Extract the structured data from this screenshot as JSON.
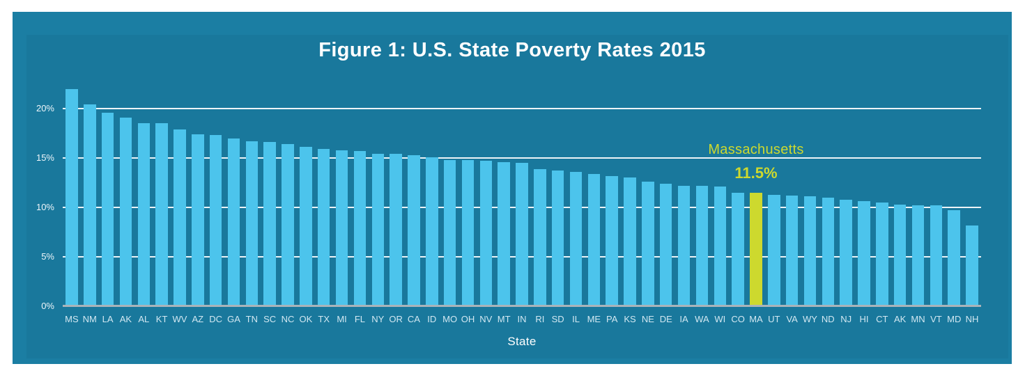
{
  "page": {
    "background": "#ffffff"
  },
  "card": {
    "background": "#1b7ea3"
  },
  "chart": {
    "title": "Figure 1: U.S. State Poverty Rates 2015",
    "xlabel": "State",
    "annotation": {
      "line1": "Massachusetts",
      "line2": "11.5%"
    }
  },
  "y_axis": {
    "tick_labels": [
      "20%",
      "15%",
      "10%",
      "5%",
      "0%"
    ],
    "tick_values": [
      20,
      15,
      10,
      5,
      0
    ]
  },
  "colors": {
    "bar": "#4cc4ec",
    "highlight": "#cdd92e",
    "gridline": "rgba(255,255,255,0.92)",
    "axis_line": "#a9b4ba",
    "text": "#ffffff"
  },
  "chart_data": {
    "type": "bar",
    "title": "Figure 1: U.S. State Poverty Rates 2015",
    "xlabel": "State",
    "ylabel": "",
    "ylim": [
      0,
      23
    ],
    "yticks": [
      0,
      5,
      10,
      15,
      20
    ],
    "ytick_format": "percent",
    "grid": "horizontal",
    "legend": "none",
    "categories": [
      "MS",
      "NM",
      "LA",
      "AK",
      "AL",
      "KT",
      "WV",
      "AZ",
      "DC",
      "GA",
      "TN",
      "SC",
      "NC",
      "OK",
      "TX",
      "MI",
      "FL",
      "NY",
      "OR",
      "CA",
      "ID",
      "MO",
      "OH",
      "NV",
      "MT",
      "IN",
      "RI",
      "SD",
      "IL",
      "ME",
      "PA",
      "KS",
      "NE",
      "DE",
      "IA",
      "WA",
      "WI",
      "CO",
      "MA",
      "UT",
      "VA",
      "WY",
      "ND",
      "NJ",
      "HI",
      "CT",
      "AK",
      "MN",
      "VT",
      "MD",
      "NH"
    ],
    "values": [
      22.0,
      20.4,
      19.6,
      19.1,
      18.5,
      18.5,
      17.9,
      17.4,
      17.3,
      17.0,
      16.7,
      16.6,
      16.4,
      16.1,
      15.9,
      15.8,
      15.7,
      15.4,
      15.4,
      15.3,
      15.1,
      14.8,
      14.8,
      14.7,
      14.6,
      14.5,
      13.9,
      13.7,
      13.6,
      13.4,
      13.2,
      13.0,
      12.6,
      12.4,
      12.2,
      12.2,
      12.1,
      11.5,
      11.5,
      11.3,
      11.2,
      11.1,
      11.0,
      10.8,
      10.6,
      10.5,
      10.3,
      10.2,
      10.2,
      9.7,
      8.2
    ],
    "bar_color": "#4cc4ec",
    "highlight_index": 38,
    "highlight_category": "MA",
    "highlight_color": "#cdd92e",
    "highlight_label": "Massachusetts",
    "highlight_value_label": "11.5%"
  }
}
